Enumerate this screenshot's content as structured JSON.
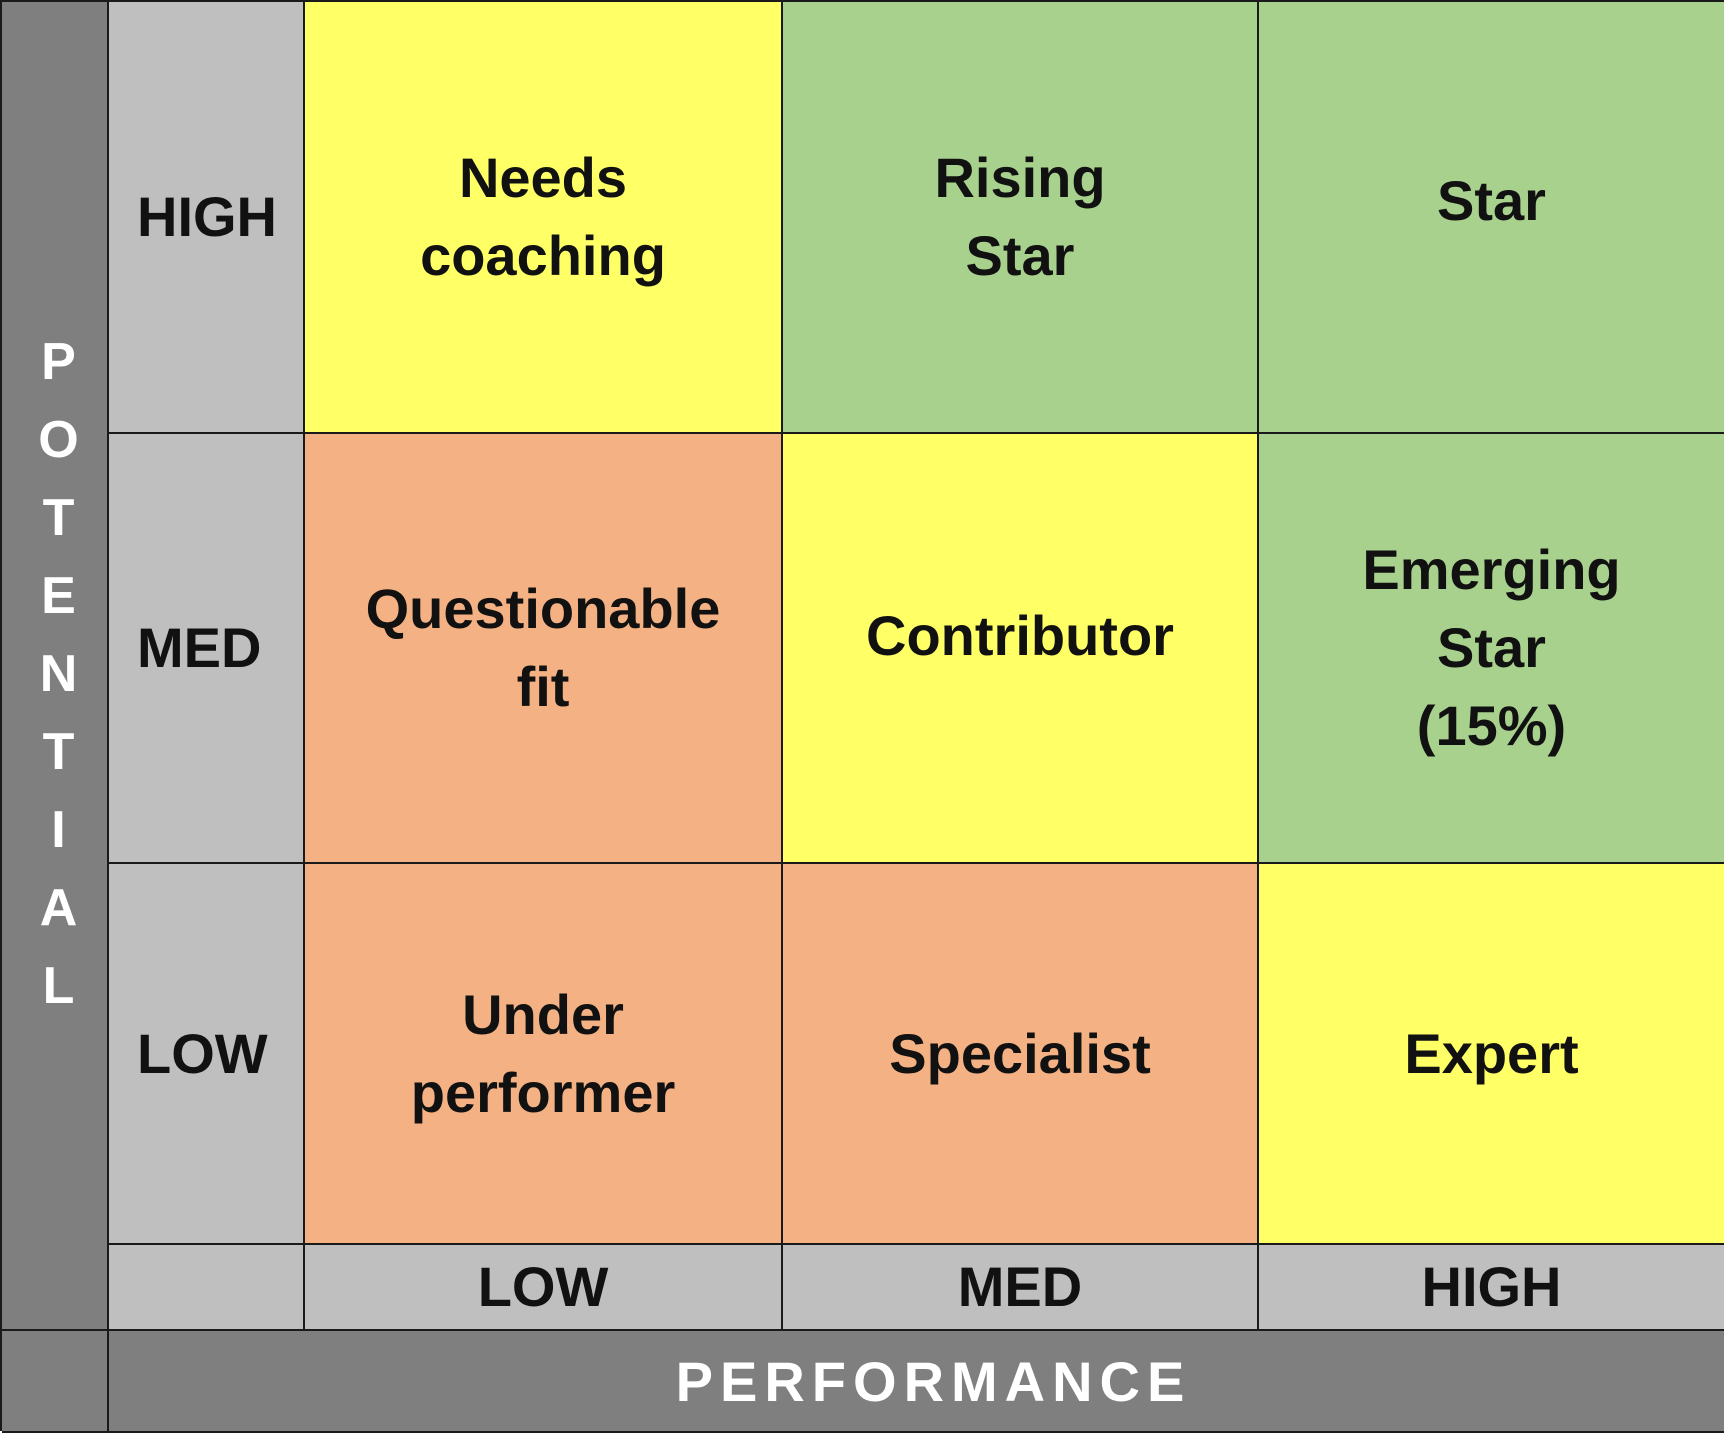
{
  "y_axis": {
    "title_letters": [
      "P",
      "O",
      "T",
      "E",
      "N",
      "T",
      "I",
      "A",
      "L"
    ],
    "levels": [
      "HIGH",
      "MED",
      "LOW"
    ]
  },
  "x_axis": {
    "title": "PERFORMANCE",
    "levels": [
      "LOW",
      "MED",
      "HIGH"
    ]
  },
  "grid": {
    "rows": [
      {
        "potential": "HIGH",
        "cells": [
          {
            "label": "Needs\ncoaching",
            "color": "#ffff66"
          },
          {
            "label": "Rising\nStar",
            "color": "#a9d18e"
          },
          {
            "label": "Star",
            "color": "#a9d18e"
          }
        ]
      },
      {
        "potential": "MED",
        "cells": [
          {
            "label": "Questionable\nfit",
            "color": "#f4b183"
          },
          {
            "label": "Contributor",
            "color": "#ffff66"
          },
          {
            "label": "Emerging\nStar\n(15%)",
            "color": "#a9d18e"
          }
        ]
      },
      {
        "potential": "LOW",
        "cells": [
          {
            "label": "Under\nperformer",
            "color": "#f4b183"
          },
          {
            "label": "Specialist",
            "color": "#f4b183"
          },
          {
            "label": "Expert",
            "color": "#ffff66"
          }
        ]
      }
    ]
  },
  "colors": {
    "axis_dark": "#7f7f7f",
    "axis_light": "#bfbfbf",
    "green": "#a9d18e",
    "yellow": "#ffff66",
    "orange": "#f4b183"
  }
}
